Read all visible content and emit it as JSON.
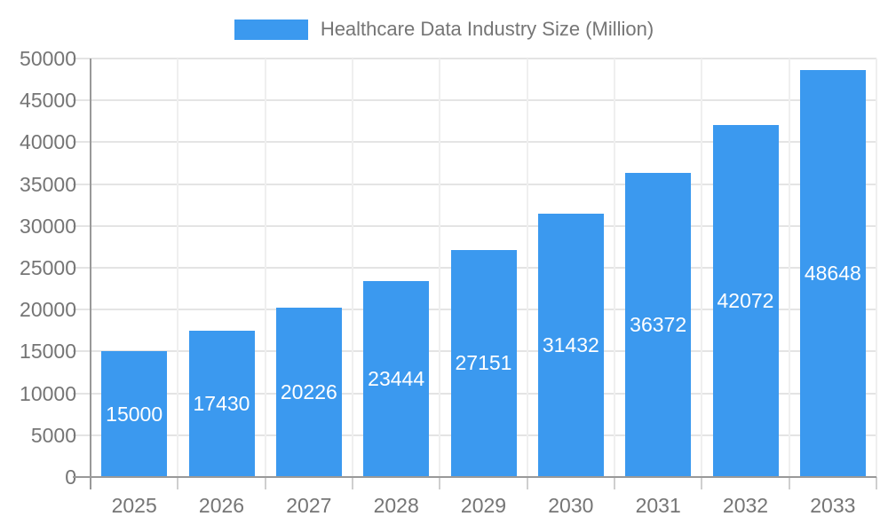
{
  "chart_data": {
    "type": "bar",
    "title": "Healthcare Data Industry Size (Million)",
    "categories": [
      "2025",
      "2026",
      "2027",
      "2028",
      "2029",
      "2030",
      "2031",
      "2032",
      "2033"
    ],
    "series": [
      {
        "name": "Healthcare Data Industry Size (Million)",
        "color": "#3b99ef",
        "values": [
          15000,
          17430,
          20226,
          23444,
          27151,
          31432,
          36372,
          42072,
          48648
        ]
      }
    ],
    "xlabel": "",
    "ylabel": "",
    "ylim": [
      0,
      50000
    ],
    "ytick_step": 5000,
    "yticks": [
      0,
      5000,
      10000,
      15000,
      20000,
      25000,
      30000,
      35000,
      40000,
      45000,
      50000
    ],
    "grid": "horizontal and vertical gridlines on",
    "legend_position": "top-center",
    "value_labels": "inside bars, white, vertically centered"
  },
  "style": {
    "bar_color": "#3b99ef",
    "axis_text_color": "#757575",
    "legend_text_color": "#757575",
    "bar_label_color": "#ffffff",
    "hgrid_color": "#e4e4e4",
    "vgrid_color": "#efefef",
    "axis_line_color": "#999999",
    "tick_color": "#cfcfcf",
    "background": "#ffffff"
  }
}
